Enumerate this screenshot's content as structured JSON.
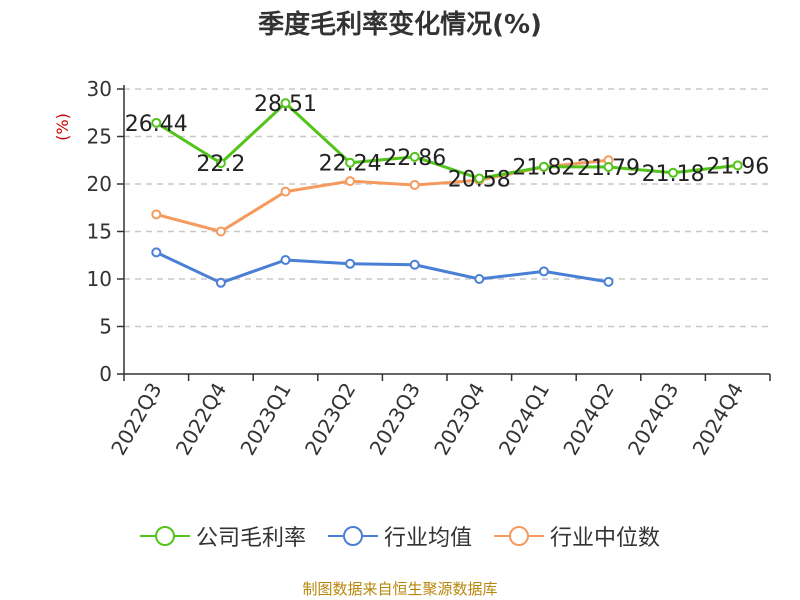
{
  "chart_data": {
    "type": "line",
    "title": "季度毛利率变化情况(%)",
    "ylabel": "(%)",
    "xlabel": "",
    "categories": [
      "2022Q3",
      "2022Q4",
      "2023Q1",
      "2023Q2",
      "2023Q3",
      "2023Q4",
      "2024Q1",
      "2024Q2",
      "2024Q3",
      "2024Q4"
    ],
    "ylim": [
      0,
      30
    ],
    "yticks": [
      0,
      5,
      10,
      15,
      20,
      25,
      30
    ],
    "grid": true,
    "legend_position": "bottom",
    "series": [
      {
        "name": "公司毛利率",
        "color": "#52c41a",
        "values": [
          26.44,
          22.2,
          28.51,
          22.24,
          22.86,
          20.58,
          21.82,
          21.79,
          21.18,
          21.96
        ],
        "labels": [
          "26.44",
          "22.2",
          "28.51",
          "22.24",
          "22.86",
          "20.58",
          "21.82",
          "21.79",
          "21.18",
          "21.96"
        ]
      },
      {
        "name": "行业均值",
        "color": "#4a7fd6",
        "values": [
          12.8,
          9.6,
          12.0,
          11.6,
          11.5,
          10.0,
          10.8,
          9.7,
          null,
          null
        ]
      },
      {
        "name": "行业中位数",
        "color": "#f59a5e",
        "values": [
          16.8,
          15.0,
          19.2,
          20.3,
          19.9,
          20.4,
          21.8,
          22.5,
          null,
          null
        ]
      }
    ]
  },
  "footer": {
    "source": "制图数据来自恒生聚源数据库"
  }
}
